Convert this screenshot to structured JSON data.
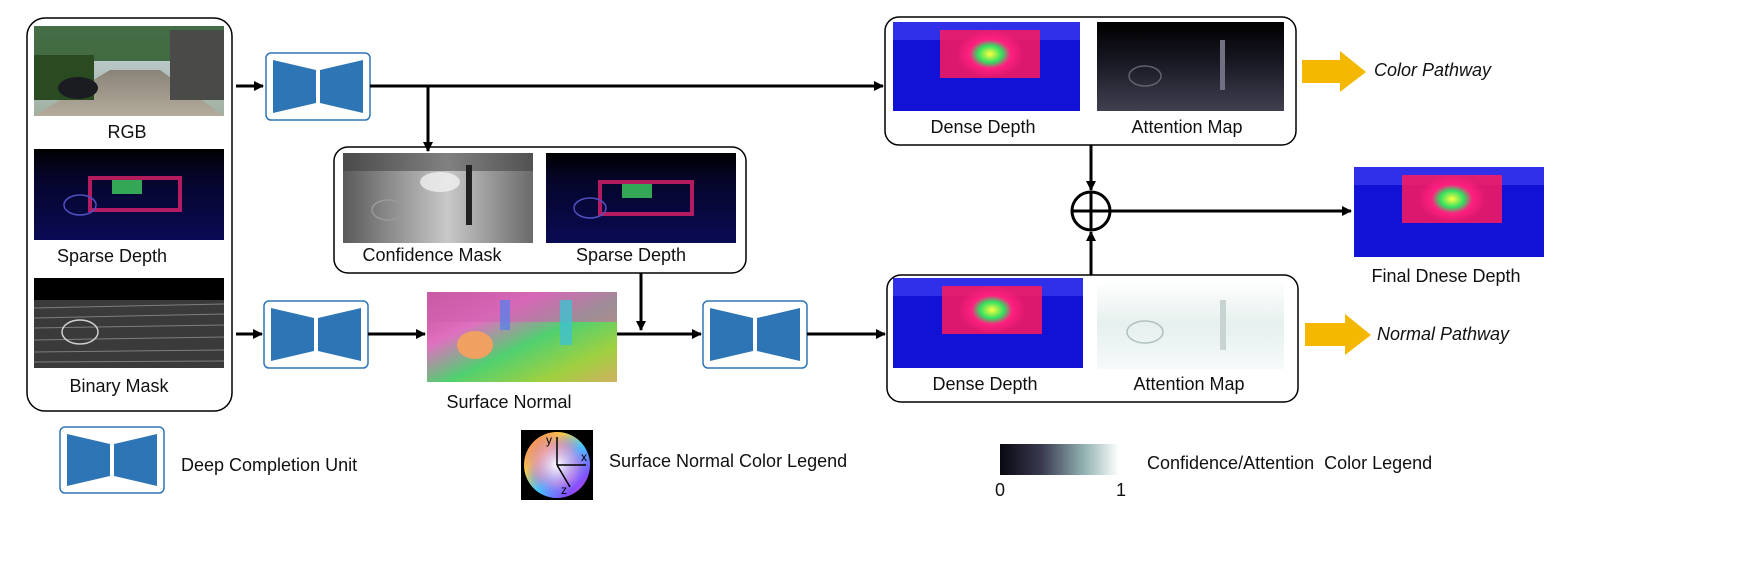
{
  "input_panel": {
    "rgb_label": "RGB",
    "sparse_depth_label": "Sparse Depth",
    "binary_mask_label": "Binary Mask"
  },
  "middle_panel": {
    "confidence_mask_label": "Confidence Mask",
    "sparse_depth_label": "Sparse Depth"
  },
  "surface_normal_label": "Surface Normal",
  "color_pathway": {
    "dense_depth_label": "Dense Depth",
    "attention_map_label": "Attention Map",
    "pathway_label": "Color Pathway"
  },
  "normal_pathway": {
    "dense_depth_label": "Dense Depth",
    "attention_map_label": "Attention Map",
    "pathway_label": "Normal Pathway"
  },
  "output": {
    "final_label": "Final Dnese Depth"
  },
  "legend": {
    "dcu_label": "Deep Completion Unit",
    "normal_legend_label": "Surface Normal Color Legend",
    "axis_x": "x",
    "axis_y": "y",
    "axis_z": "z",
    "conf_legend_label": "Confidence/Attention  Color Legend",
    "scale_min": "0",
    "scale_max": "1"
  },
  "colors": {
    "unit_blue": "#2e75b6",
    "arrow_gold": "#f5b800",
    "depth_blue": "#1010d8",
    "depth_magenta": "#ff1a5a"
  }
}
